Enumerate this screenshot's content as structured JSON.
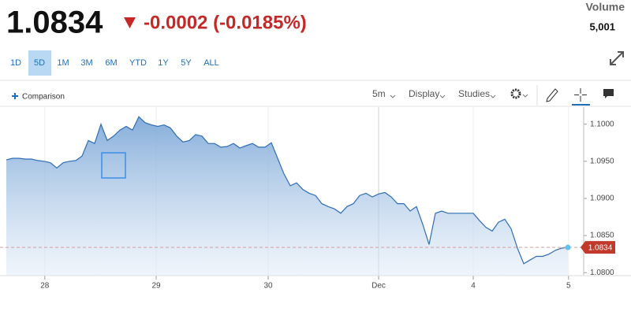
{
  "header": {
    "price": "1.0834",
    "change": "-0.0002 (-0.0185%)",
    "volume_label": "Volume",
    "volume": "5,001"
  },
  "ranges": [
    "1D",
    "5D",
    "1M",
    "3M",
    "6M",
    "YTD",
    "1Y",
    "5Y",
    "ALL"
  ],
  "active_range": 1,
  "toolbar": {
    "comparison": "Comparison",
    "interval": "5m",
    "display": "Display",
    "studies": "Studies"
  },
  "chart_data": {
    "type": "area",
    "color": "#2f6db5",
    "values": [
      1.0952,
      1.0954,
      1.0954,
      1.0953,
      1.0953,
      1.0951,
      1.095,
      1.0948,
      1.0941,
      1.0948,
      1.095,
      1.0951,
      1.0957,
      1.0978,
      1.0974,
      1.1,
      1.0978,
      1.0984,
      1.0992,
      1.0997,
      1.0992,
      1.101,
      1.1002,
      1.0999,
      1.0997,
      1.0999,
      1.0995,
      1.0984,
      1.0976,
      1.0978,
      1.0986,
      1.0984,
      1.0974,
      1.0974,
      1.0969,
      1.097,
      1.0974,
      1.0968,
      1.0971,
      1.0974,
      1.0969,
      1.0969,
      1.0975,
      1.0954,
      1.0933,
      1.0917,
      1.0921,
      1.0912,
      1.0907,
      1.0904,
      1.0893,
      1.0889,
      1.0886,
      1.088,
      1.0889,
      1.0893,
      1.0904,
      1.0907,
      1.0902,
      1.0906,
      1.0908,
      1.0902,
      1.0893,
      1.0893,
      1.0883,
      1.0889,
      1.0865,
      1.0838,
      1.088,
      1.0883,
      1.088,
      1.088,
      1.088,
      1.088,
      1.088,
      1.087,
      1.0861,
      1.0856,
      1.0868,
      1.0872,
      1.0859,
      1.0833,
      1.0812,
      1.0817,
      1.0822,
      1.0822,
      1.0825,
      1.083,
      1.0833,
      1.0834
    ],
    "xlim": [
      -1,
      91.5
    ],
    "xticks": [
      {
        "value": 6.1,
        "label": "28"
      },
      {
        "value": 23.75,
        "label": "29"
      },
      {
        "value": 41.5,
        "label": "30"
      },
      {
        "value": 59,
        "label": "Dec"
      },
      {
        "value": 74,
        "label": "4"
      },
      {
        "value": 89.1,
        "label": "5"
      }
    ],
    "ylim": [
      1.0796,
      1.1023
    ],
    "yticks": [
      {
        "value": 1.08,
        "label": "1.0800"
      },
      {
        "value": 1.085,
        "label": "1.0850"
      },
      {
        "value": 1.09,
        "label": "1.0900"
      },
      {
        "value": 1.095,
        "label": "1.0950"
      },
      {
        "value": 1.1,
        "label": "1.1000"
      }
    ],
    "current": 1.0834,
    "current_label": "1.0834"
  }
}
